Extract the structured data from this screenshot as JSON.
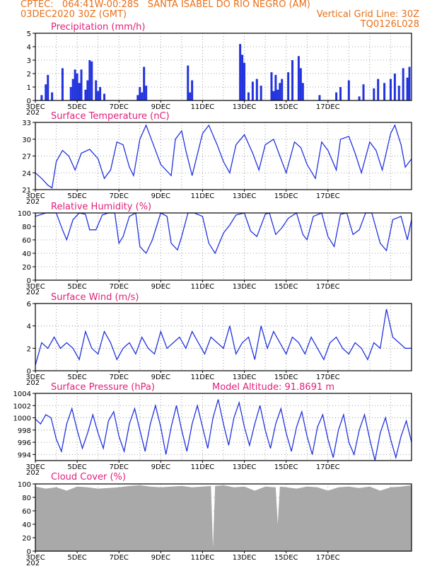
{
  "header": {
    "line1_left": "CPTEC:   064:41W-00:28S   SANTA ISABEL DO RIO NEGRO (AM)",
    "line2_left": "03DEC2020 30Z (GMT)",
    "line2_right": "Vertical Grid Line: 30Z",
    "line3_right": "TQ0126L028"
  },
  "colors": {
    "header": "#e8701a",
    "title": "#e0207a",
    "series": "#2233dd",
    "cloud": "#a9a9a9"
  },
  "x_axis": {
    "labels": [
      "3DEC",
      "5DEC",
      "7DEC",
      "9DEC",
      "11DEC",
      "13DEC",
      "15DEC",
      "17DEC"
    ],
    "year_label": "202"
  },
  "chart_data": [
    {
      "type": "bar",
      "title": "Precipitation (mm/h)",
      "ylim": [
        0,
        5
      ],
      "yticks": [
        "0",
        "1",
        "2",
        "3",
        "4",
        "5"
      ],
      "x": [
        0.3,
        0.5,
        0.6,
        0.8,
        1.3,
        1.7,
        1.8,
        1.9,
        2.0,
        2.1,
        2.2,
        2.4,
        2.5,
        2.6,
        2.7,
        2.9,
        3.0,
        3.1,
        3.3,
        4.9,
        5.0,
        5.1,
        5.2,
        5.3,
        7.3,
        7.4,
        7.5,
        9.8,
        9.9,
        10.0,
        10.2,
        10.4,
        10.6,
        10.8,
        11.3,
        11.4,
        11.5,
        11.6,
        11.7,
        11.8,
        12.1,
        12.3,
        12.6,
        12.7,
        12.8,
        13.6,
        14.4,
        14.6,
        15.0,
        15.5,
        15.7,
        16.2,
        16.4,
        16.7,
        17.0,
        17.2,
        17.4,
        17.6,
        17.8,
        17.9
      ],
      "values": [
        0.4,
        1.2,
        1.9,
        0.6,
        2.4,
        1.0,
        1.6,
        2.3,
        2.0,
        1.3,
        2.3,
        0.8,
        1.5,
        3.0,
        2.9,
        1.5,
        0.7,
        1.0,
        0.5,
        0.4,
        1.0,
        0.6,
        2.5,
        1.1,
        2.6,
        0.6,
        1.5,
        4.2,
        3.4,
        2.8,
        0.6,
        1.4,
        1.6,
        1.1,
        2.1,
        0.7,
        1.9,
        0.8,
        1.3,
        1.6,
        2.1,
        3.0,
        3.3,
        2.4,
        1.3,
        0.4,
        0.6,
        1.0,
        1.5,
        0.3,
        1.2,
        0.9,
        1.6,
        1.3,
        1.6,
        2.0,
        1.1,
        2.4,
        1.7,
        2.5
      ]
    },
    {
      "type": "line",
      "title": "Surface Temperature (nC)",
      "ylim": [
        21,
        33
      ],
      "yticks": [
        "21",
        "24",
        "27",
        "30",
        "33"
      ],
      "x": [
        0,
        0.3,
        0.6,
        0.8,
        1.0,
        1.3,
        1.6,
        1.9,
        2.2,
        2.6,
        3.0,
        3.3,
        3.6,
        3.9,
        4.2,
        4.5,
        4.7,
        5.0,
        5.3,
        5.6,
        6.0,
        6.5,
        6.7,
        7.0,
        7.2,
        7.5,
        8.0,
        8.3,
        8.7,
        9.0,
        9.3,
        9.6,
        10.0,
        10.4,
        10.7,
        11.0,
        11.4,
        11.7,
        12.0,
        12.4,
        12.7,
        13.0,
        13.4,
        13.7,
        14.0,
        14.4,
        14.6,
        15.0,
        15.3,
        15.6,
        16.0,
        16.3,
        16.6,
        17.0,
        17.2,
        17.5,
        17.7,
        18.0
      ],
      "values": [
        24.0,
        23.0,
        21.8,
        21.3,
        26.0,
        28.0,
        27.0,
        24.5,
        27.5,
        28.2,
        26.5,
        23.0,
        24.5,
        29.5,
        29.0,
        25.0,
        23.5,
        30.0,
        32.5,
        29.5,
        25.5,
        23.5,
        30.0,
        31.5,
        28.0,
        23.5,
        31.0,
        32.5,
        29.0,
        26.0,
        24.0,
        29.0,
        30.8,
        27.5,
        24.5,
        29.0,
        30.0,
        27.0,
        24.0,
        29.5,
        28.5,
        25.5,
        23.0,
        29.5,
        28.0,
        24.5,
        30.0,
        30.5,
        27.5,
        24.0,
        29.5,
        28.0,
        24.5,
        31.0,
        32.5,
        29.0,
        25.0,
        26.5
      ]
    },
    {
      "type": "line",
      "title": "Relative Humidity (%)",
      "ylim": [
        0,
        100
      ],
      "yticks": [
        "0",
        "20",
        "40",
        "60",
        "80",
        "100"
      ],
      "x": [
        0,
        0.5,
        1.0,
        1.3,
        1.5,
        1.8,
        2.1,
        2.4,
        2.6,
        2.9,
        3.2,
        3.5,
        3.8,
        4.0,
        4.2,
        4.5,
        4.8,
        5.0,
        5.3,
        5.6,
        6.0,
        6.3,
        6.5,
        6.8,
        7.0,
        7.3,
        7.6,
        8.0,
        8.3,
        8.6,
        9.0,
        9.3,
        9.6,
        10.0,
        10.3,
        10.6,
        11.0,
        11.2,
        11.5,
        11.8,
        12.1,
        12.5,
        12.8,
        13.0,
        13.3,
        13.7,
        14.0,
        14.3,
        14.6,
        14.9,
        15.2,
        15.5,
        15.8,
        16.1,
        16.5,
        16.8,
        17.1,
        17.5,
        17.8,
        18.0
      ],
      "values": [
        95,
        100,
        100,
        75,
        60,
        90,
        100,
        98,
        75,
        75,
        97,
        100,
        100,
        55,
        65,
        95,
        100,
        50,
        40,
        60,
        100,
        95,
        55,
        45,
        65,
        100,
        100,
        95,
        55,
        40,
        70,
        82,
        97,
        100,
        73,
        65,
        98,
        100,
        68,
        78,
        92,
        100,
        68,
        60,
        95,
        100,
        65,
        50,
        98,
        100,
        68,
        75,
        100,
        100,
        55,
        44,
        90,
        95,
        60,
        90
      ]
    },
    {
      "type": "line",
      "title": "Surface Wind (m/s)",
      "ylim": [
        0,
        6
      ],
      "yticks": [
        "0",
        "2",
        "4",
        "6"
      ],
      "x": [
        0,
        0.3,
        0.6,
        0.9,
        1.2,
        1.5,
        1.8,
        2.1,
        2.4,
        2.7,
        3.0,
        3.3,
        3.6,
        3.9,
        4.2,
        4.5,
        4.8,
        5.1,
        5.4,
        5.7,
        6.0,
        6.3,
        6.6,
        6.9,
        7.2,
        7.5,
        7.8,
        8.1,
        8.4,
        8.7,
        9.0,
        9.3,
        9.6,
        9.9,
        10.2,
        10.5,
        10.8,
        11.1,
        11.4,
        11.7,
        12.0,
        12.3,
        12.6,
        12.9,
        13.2,
        13.5,
        13.8,
        14.1,
        14.4,
        14.7,
        15.0,
        15.3,
        15.6,
        15.9,
        16.2,
        16.5,
        16.8,
        17.1,
        17.4,
        17.7,
        18.0
      ],
      "values": [
        0.5,
        2.5,
        2.0,
        3.0,
        2.0,
        2.5,
        2.0,
        1.0,
        3.5,
        2.0,
        1.5,
        3.5,
        2.5,
        1.0,
        2.0,
        2.5,
        1.5,
        3.0,
        2.0,
        1.5,
        3.5,
        2.0,
        2.5,
        3.0,
        2.0,
        3.5,
        2.5,
        1.5,
        3.0,
        2.5,
        2.0,
        4.0,
        1.5,
        2.5,
        3.0,
        1.0,
        4.0,
        2.0,
        3.5,
        2.5,
        1.5,
        3.0,
        2.5,
        1.5,
        3.0,
        2.0,
        1.0,
        2.5,
        3.0,
        2.0,
        1.5,
        2.5,
        2.0,
        1.0,
        2.5,
        2.0,
        5.5,
        3.0,
        2.5,
        2.0,
        2.0
      ]
    },
    {
      "type": "line",
      "title": "Surface Pressure (hPa)",
      "annotation": "Model Altitude:  91.8691 m",
      "ylim": [
        993,
        1004
      ],
      "yticks": [
        "994",
        "996",
        "998",
        "1000",
        "1002",
        "1004"
      ],
      "x": [
        0,
        0.25,
        0.5,
        0.75,
        1.0,
        1.25,
        1.5,
        1.75,
        2.0,
        2.25,
        2.5,
        2.75,
        3.0,
        3.25,
        3.5,
        3.75,
        4.0,
        4.25,
        4.5,
        4.75,
        5.0,
        5.25,
        5.5,
        5.75,
        6.0,
        6.25,
        6.5,
        6.75,
        7.0,
        7.25,
        7.5,
        7.75,
        8.0,
        8.25,
        8.5,
        8.75,
        9.0,
        9.25,
        9.5,
        9.75,
        10.0,
        10.25,
        10.5,
        10.75,
        11.0,
        11.25,
        11.5,
        11.75,
        12.0,
        12.25,
        12.5,
        12.75,
        13.0,
        13.25,
        13.5,
        13.75,
        14.0,
        14.25,
        14.5,
        14.75,
        15.0,
        15.25,
        15.5,
        15.75,
        16.0,
        16.25,
        16.5,
        16.75,
        17.0,
        17.25,
        17.5,
        17.75,
        18.0
      ],
      "values": [
        999.8,
        999.0,
        1000.5,
        1000.0,
        996.5,
        994.5,
        999.0,
        1001.5,
        998.0,
        995.0,
        997.5,
        1000.5,
        997.5,
        995.0,
        999.5,
        1001.0,
        997.0,
        994.5,
        999.0,
        1001.5,
        998.0,
        994.5,
        999.0,
        1002.0,
        998.5,
        994.0,
        998.5,
        1002.0,
        998.0,
        994.5,
        999.0,
        1002.0,
        998.5,
        995.0,
        1000.0,
        1003.0,
        999.0,
        995.5,
        1000.0,
        1002.5,
        998.5,
        995.5,
        999.0,
        1002.0,
        998.0,
        995.0,
        999.0,
        1001.5,
        997.5,
        994.5,
        998.5,
        1001.0,
        997.0,
        994.0,
        998.5,
        1000.5,
        996.5,
        993.5,
        998.0,
        1000.5,
        996.0,
        994.0,
        998.0,
        1000.5,
        996.5,
        993.0,
        997.5,
        1000.0,
        996.5,
        993.5,
        997.0,
        999.5,
        996.0
      ]
    },
    {
      "type": "area",
      "title": "Cloud Cover (%)",
      "ylim": [
        0,
        100
      ],
      "yticks": [
        "0",
        "20",
        "40",
        "60",
        "80",
        "100"
      ],
      "x": [
        0,
        0.5,
        1.0,
        1.5,
        2.0,
        2.5,
        3.0,
        3.5,
        4.0,
        4.5,
        5.0,
        5.5,
        6.0,
        6.5,
        7.0,
        7.5,
        8.0,
        8.4,
        8.5,
        8.6,
        9.0,
        9.5,
        10.0,
        10.5,
        11.0,
        11.5,
        11.6,
        11.7,
        12.0,
        12.5,
        13.0,
        13.5,
        14.0,
        14.5,
        15.0,
        15.5,
        16.0,
        16.5,
        17.0,
        17.5,
        18.0
      ],
      "values": [
        96,
        93,
        95,
        90,
        96,
        95,
        93,
        94,
        95,
        97,
        98,
        96,
        95,
        96,
        97,
        95,
        96,
        97,
        5,
        97,
        98,
        95,
        96,
        90,
        96,
        95,
        40,
        96,
        95,
        93,
        96,
        95,
        90,
        95,
        96,
        94,
        96,
        90,
        95,
        96,
        98
      ]
    }
  ]
}
